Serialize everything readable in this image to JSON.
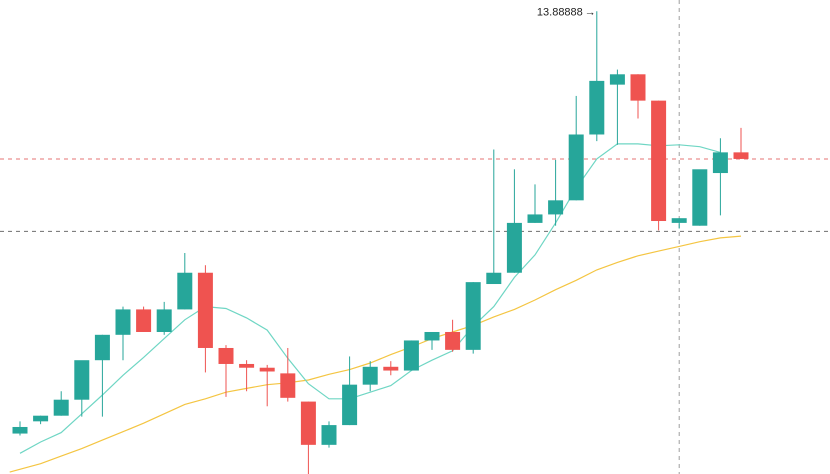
{
  "chart_data": {
    "type": "candlestick",
    "max_label": "13.88888",
    "ylim": [
      8.96,
      14.0
    ],
    "colors": {
      "up": "#26a69a",
      "down": "#ef5350",
      "ma_fast": "#6fd6c4",
      "ma_slow": "#f4c542",
      "price_line": "#e57373",
      "crosshair": "#9e9e9e"
    },
    "candles": [
      {
        "o": 9.39,
        "h": 9.52,
        "l": 9.37,
        "c": 9.46
      },
      {
        "o": 9.52,
        "h": 9.58,
        "l": 9.49,
        "c": 9.58
      },
      {
        "o": 9.58,
        "h": 9.84,
        "l": 9.58,
        "c": 9.75
      },
      {
        "o": 9.75,
        "h": 10.13,
        "l": 9.57,
        "c": 10.17
      },
      {
        "o": 10.17,
        "h": 10.44,
        "l": 9.57,
        "c": 10.44
      },
      {
        "o": 10.44,
        "h": 10.74,
        "l": 10.17,
        "c": 10.71
      },
      {
        "o": 10.71,
        "h": 10.74,
        "l": 10.47,
        "c": 10.47
      },
      {
        "o": 10.47,
        "h": 10.79,
        "l": 10.44,
        "c": 10.71
      },
      {
        "o": 10.71,
        "h": 11.31,
        "l": 10.71,
        "c": 11.1
      },
      {
        "o": 11.1,
        "h": 11.18,
        "l": 10.04,
        "c": 10.3
      },
      {
        "o": 10.3,
        "h": 10.33,
        "l": 9.78,
        "c": 10.13
      },
      {
        "o": 10.13,
        "h": 10.17,
        "l": 9.84,
        "c": 10.09
      },
      {
        "o": 10.09,
        "h": 10.12,
        "l": 9.68,
        "c": 10.05
      },
      {
        "o": 10.03,
        "h": 10.3,
        "l": 9.73,
        "c": 9.77
      },
      {
        "o": 9.73,
        "h": 9.73,
        "l": 8.95,
        "c": 9.27
      },
      {
        "o": 9.27,
        "h": 9.52,
        "l": 9.24,
        "c": 9.48
      },
      {
        "o": 9.48,
        "h": 10.21,
        "l": 9.48,
        "c": 9.91
      },
      {
        "o": 9.91,
        "h": 10.16,
        "l": 9.84,
        "c": 10.1
      },
      {
        "o": 10.1,
        "h": 10.16,
        "l": 10.01,
        "c": 10.06
      },
      {
        "o": 10.06,
        "h": 10.38,
        "l": 10.06,
        "c": 10.38
      },
      {
        "o": 10.38,
        "h": 10.47,
        "l": 10.28,
        "c": 10.47
      },
      {
        "o": 10.47,
        "h": 10.6,
        "l": 10.26,
        "c": 10.28
      },
      {
        "o": 10.28,
        "h": 11.0,
        "l": 10.24,
        "c": 11.0
      },
      {
        "o": 10.98,
        "h": 12.41,
        "l": 10.98,
        "c": 11.1
      },
      {
        "o": 11.1,
        "h": 12.2,
        "l": 11.1,
        "c": 11.63
      },
      {
        "o": 11.63,
        "h": 12.04,
        "l": 11.63,
        "c": 11.72
      },
      {
        "o": 11.72,
        "h": 12.3,
        "l": 11.6,
        "c": 11.87
      },
      {
        "o": 11.87,
        "h": 12.98,
        "l": 11.87,
        "c": 12.57
      },
      {
        "o": 12.57,
        "h": 13.88,
        "l": 12.5,
        "c": 13.14
      },
      {
        "o": 13.1,
        "h": 13.26,
        "l": 12.46,
        "c": 13.21
      },
      {
        "o": 13.21,
        "h": 13.21,
        "l": 12.74,
        "c": 12.93
      },
      {
        "o": 12.93,
        "h": 12.93,
        "l": 11.55,
        "c": 11.65
      },
      {
        "o": 11.63,
        "h": 11.68,
        "l": 11.57,
        "c": 11.68
      },
      {
        "o": 11.6,
        "h": 12.17,
        "l": 11.6,
        "c": 12.2
      },
      {
        "o": 12.16,
        "h": 12.53,
        "l": 11.71,
        "c": 12.38
      },
      {
        "o": 12.38,
        "h": 12.64,
        "l": 12.31,
        "c": 12.31
      }
    ],
    "ma_fast": [
      [
        0,
        9.18
      ],
      [
        1,
        9.3
      ],
      [
        2,
        9.4
      ],
      [
        3,
        9.6
      ],
      [
        4,
        9.8
      ],
      [
        5,
        10.01
      ],
      [
        6,
        10.2
      ],
      [
        7,
        10.4
      ],
      [
        8,
        10.6
      ],
      [
        9,
        10.74
      ],
      [
        10,
        10.72
      ],
      [
        11,
        10.62
      ],
      [
        12,
        10.49
      ],
      [
        13,
        10.19
      ],
      [
        14,
        9.92
      ],
      [
        15,
        9.76
      ],
      [
        16,
        9.76
      ],
      [
        17,
        9.83
      ],
      [
        18,
        9.9
      ],
      [
        19,
        10.06
      ],
      [
        20,
        10.17
      ],
      [
        21,
        10.27
      ],
      [
        22,
        10.53
      ],
      [
        23,
        10.74
      ],
      [
        24,
        11.05
      ],
      [
        25,
        11.29
      ],
      [
        26,
        11.63
      ],
      [
        27,
        12.0
      ],
      [
        28,
        12.31
      ],
      [
        29,
        12.47
      ],
      [
        30,
        12.47
      ],
      [
        31,
        12.45
      ],
      [
        32,
        12.46
      ],
      [
        33,
        12.44
      ],
      [
        34,
        12.38
      ]
    ],
    "ma_slow": [
      [
        -0.5,
        8.98
      ],
      [
        1,
        9.07
      ],
      [
        2,
        9.15
      ],
      [
        3,
        9.23
      ],
      [
        4,
        9.32
      ],
      [
        5,
        9.41
      ],
      [
        6,
        9.5
      ],
      [
        7,
        9.6
      ],
      [
        8,
        9.7
      ],
      [
        9,
        9.76
      ],
      [
        10,
        9.83
      ],
      [
        11,
        9.87
      ],
      [
        12,
        9.91
      ],
      [
        13,
        9.93
      ],
      [
        14,
        9.96
      ],
      [
        15,
        10.02
      ],
      [
        16,
        10.07
      ],
      [
        17,
        10.14
      ],
      [
        18,
        10.23
      ],
      [
        19,
        10.31
      ],
      [
        20,
        10.4
      ],
      [
        21,
        10.47
      ],
      [
        22,
        10.54
      ],
      [
        23,
        10.63
      ],
      [
        24,
        10.71
      ],
      [
        25,
        10.81
      ],
      [
        26,
        10.92
      ],
      [
        27,
        11.02
      ],
      [
        28,
        11.13
      ],
      [
        29,
        11.21
      ],
      [
        30,
        11.28
      ],
      [
        31,
        11.33
      ],
      [
        32,
        11.38
      ],
      [
        33,
        11.43
      ],
      [
        34,
        11.47
      ],
      [
        35,
        11.49
      ]
    ],
    "price_lines": [
      12.31,
      11.54
    ],
    "crosshair_index": 32
  }
}
